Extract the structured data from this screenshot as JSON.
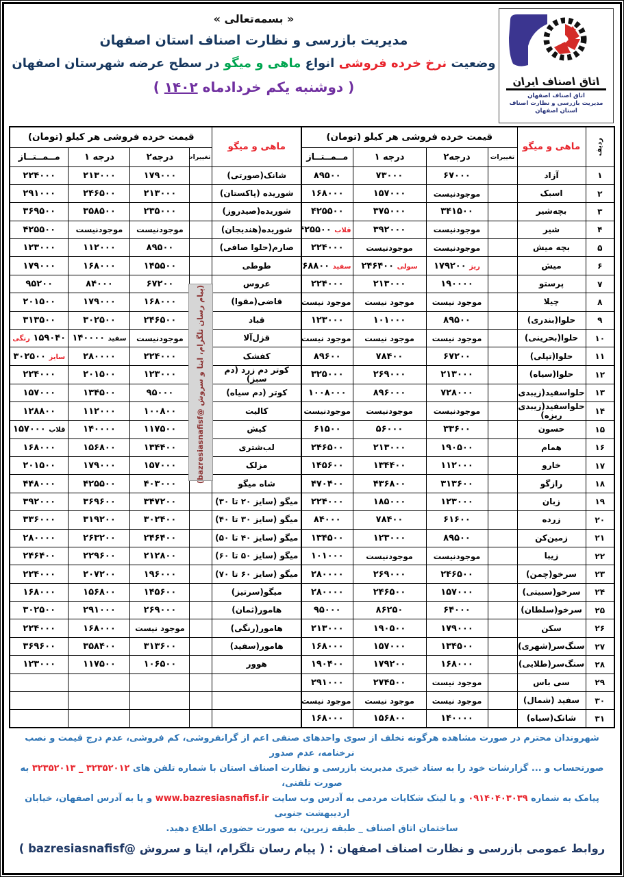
{
  "colors": {
    "navy": "#17375e",
    "red": "#e8242c",
    "green": "#00a550",
    "purple": "#7030a0",
    "footer_blue": "#2e74b5",
    "footer_navy": "#1f3864",
    "watermark_maroon": "#8b3333",
    "logo_purple": "#3b3590",
    "logo_red": "#d42b28"
  },
  "header": {
    "bismillah": "« بسمه‌تعالی »",
    "org_title": "مدیریت بازرسی و نظارت اصناف استان اصفهان",
    "subtitle_segments": [
      {
        "t": "وضعیت ",
        "c": "#17375e"
      },
      {
        "t": "نرخ خرده فروشی",
        "c": "#e8242c"
      },
      {
        "t": " انواع ",
        "c": "#17375e"
      },
      {
        "t": "ماهی و میگو",
        "c": "#00a550"
      },
      {
        "t": " در سطح عرضه شهرستان اصفهان",
        "c": "#17375e"
      }
    ],
    "date_line": {
      "prefix": "( دوشنبه  یکم خردادماه ",
      "year": "۱۴۰۲",
      "suffix": " )"
    },
    "logo": {
      "brand_name": "اتاق اصناف ایران",
      "caption_lines": [
        "اتاق اصناف اصفهان",
        "مدیریت بازرسی و نظارت اصناف",
        "استان اصفهان"
      ]
    }
  },
  "table": {
    "row_header": "ردیف",
    "fish_header": "ماهی و میگو",
    "price_header": "قیمت خرده فروشی هر کیلو (تومان)",
    "col_labels": {
      "change": "تغییرات",
      "grade2": "درجه۲",
      "grade1": "درجه ۱",
      "premium": "مــمــتــاز"
    },
    "not_available": "موجود نیست",
    "rows": [
      {
        "no": "۱",
        "right": {
          "name": "آزاد",
          "g2": "۶۷۰۰۰",
          "g1": "۷۳۰۰۰",
          "top": "۸۹۵۰۰"
        },
        "left": {
          "name": "شانک(صورتی)",
          "g2": "۱۷۹۰۰۰",
          "g1": "۲۱۳۰۰۰",
          "top": "۲۲۴۰۰۰"
        }
      },
      {
        "no": "۲",
        "right": {
          "name": "اسبک",
          "g2": "موجودنیست",
          "g1": "۱۵۷۰۰۰",
          "top": "۱۶۸۰۰۰"
        },
        "left": {
          "name": "شوریده (پاکستان)",
          "g2": "۲۱۳۰۰۰",
          "g1": "۲۴۶۵۰۰",
          "top": "۲۹۱۰۰۰"
        }
      },
      {
        "no": "۳",
        "right": {
          "name": "بچه‌شیر",
          "g2": "۳۴۱۵۰۰",
          "g1": "۳۷۵۰۰۰",
          "top": "۴۲۵۵۰۰"
        },
        "left": {
          "name": "شوریده(صیدروز)",
          "g2": "۲۳۵۰۰۰",
          "g1": "۳۵۸۵۰۰",
          "top": "۳۶۹۵۰۰"
        }
      },
      {
        "no": "۴",
        "right": {
          "name": "شیر",
          "g2": "موجودنیست",
          "g1": "۳۹۲۰۰۰",
          "top": {
            "t": "قلاب",
            "v": "۴۲۵۵۰۰",
            "tc": "#e8242c"
          }
        },
        "left": {
          "name": "شوریده(هندیجان)",
          "g2": "موجودنیست",
          "g1": "موجودنیست",
          "top": "۴۲۵۵۰۰"
        }
      },
      {
        "no": "۵",
        "right": {
          "name": "بچه میش",
          "g2": "موجودنیست",
          "g1": "موجودنیست",
          "top": "۲۲۴۰۰۰"
        },
        "left": {
          "name": "صارم(حلوا صافی)",
          "g2": "۸۹۵۰۰",
          "g1": "۱۱۲۰۰۰",
          "top": "۱۲۳۰۰۰"
        }
      },
      {
        "no": "۶",
        "right": {
          "name": "میش",
          "g2": {
            "t": "ریز",
            "v": "۱۷۹۲۰۰",
            "tc": "#e8242c"
          },
          "g1": {
            "t": "سولی",
            "v": "۲۴۶۴۰۰",
            "tc": "#e8242c"
          },
          "top": {
            "t": "سفید",
            "v": "۲۶۸۸۰۰",
            "tc": "#e8242c"
          }
        },
        "left": {
          "name": "طوطی",
          "g2": "۱۴۵۵۰۰",
          "g1": "۱۶۸۰۰۰",
          "top": "۱۷۹۰۰۰"
        }
      },
      {
        "no": "۷",
        "right": {
          "name": "پرستو",
          "g2": "۱۹۰۰۰۰",
          "g1": "۲۱۳۰۰۰",
          "top": "۲۲۴۰۰۰"
        },
        "left": {
          "name": "عروس",
          "g2": "۶۷۲۰۰",
          "g1": "۸۴۰۰۰",
          "top": "۹۵۲۰۰"
        }
      },
      {
        "no": "۸",
        "right": {
          "name": "چیلا",
          "g2": "موجود نیست",
          "g1": "موجود نیست",
          "top": "موجود نیست"
        },
        "left": {
          "name": "قاضی(مقوا)",
          "g2": "۱۶۸۰۰۰",
          "g1": "۱۷۹۰۰۰",
          "top": "۲۰۱۵۰۰"
        }
      },
      {
        "no": "۹",
        "right": {
          "name": "حلوا(بندری)",
          "g2": "۸۹۵۰۰",
          "g1": "۱۰۱۰۰۰",
          "top": "۱۲۳۰۰۰"
        },
        "left": {
          "name": "قباد",
          "g2": "۲۴۶۵۰۰",
          "g1": "۳۰۲۵۰۰",
          "top": "۳۱۳۵۰۰"
        }
      },
      {
        "no": "۱۰",
        "right": {
          "name": "حلوا(بحرینی)",
          "g2": "موجود نیست",
          "g1": "موجود نیست",
          "top": "موجود نیست"
        },
        "left": {
          "name": "قزل‌آلا",
          "g2": "موجودنیست",
          "g1": {
            "t": "سفید",
            "v": "۱۴۰۰۰۰",
            "tc": "#000000"
          },
          "top": {
            "v": "۱۵۹۰۴۰",
            "t": "رنگی",
            "tc": "#e8242c",
            "after": true
          }
        }
      },
      {
        "no": "۱۱",
        "right": {
          "name": "حلوا(تپلی)",
          "g2": "۶۷۲۰۰",
          "g1": "۷۸۴۰۰",
          "top": "۸۹۶۰۰"
        },
        "left": {
          "name": "کفشک",
          "g2": "۲۲۴۰۰۰",
          "g1": "۲۸۰۰۰۰",
          "top": {
            "t": "سایز",
            "v": "۳۰۲۵۰۰",
            "tc": "#e8242c"
          }
        }
      },
      {
        "no": "۱۲",
        "right": {
          "name": "حلوا(سیاه)",
          "g2": "۲۱۳۰۰۰",
          "g1": "۲۶۹۰۰۰",
          "top": "۳۲۵۰۰۰"
        },
        "left": {
          "name": "کوتر دم زرد (دم سبز)",
          "g2": "۱۲۳۰۰۰",
          "g1": "۲۰۱۵۰۰",
          "top": "۲۲۴۰۰۰"
        }
      },
      {
        "no": "۱۳",
        "right": {
          "name": "حلواسفید(زیبدی)",
          "g2": "۷۲۸۰۰۰",
          "g1": "۸۹۶۰۰۰",
          "top": "۱۰۰۸۰۰۰"
        },
        "left": {
          "name": "کوتر (دم سیاه)",
          "g2": "۹۵۰۰۰",
          "g1": "۱۳۴۵۰۰",
          "top": "۱۵۷۰۰۰"
        }
      },
      {
        "no": "۱۴",
        "right": {
          "name": "حلواسفید(زیبدی ریزه)",
          "g2": "موجودنیست",
          "g1": "موجودنیست",
          "top": "موجودنیست"
        },
        "left": {
          "name": "کالیت",
          "g2": "۱۰۰۸۰۰",
          "g1": "۱۱۲۰۰۰",
          "top": "۱۲۸۸۰۰"
        }
      },
      {
        "no": "۱۵",
        "right": {
          "name": "حسون",
          "g2": "۳۳۶۰۰",
          "g1": "۵۶۰۰۰",
          "top": "۶۱۵۰۰"
        },
        "left": {
          "name": "کیش",
          "g2": "۱۱۷۵۰۰",
          "g1": "۱۴۰۰۰۰",
          "top": {
            "t": "قلاب",
            "v": "۱۵۷۰۰۰",
            "tc": "#000000"
          }
        }
      },
      {
        "no": "۱۶",
        "right": {
          "name": "همام",
          "g2": "۱۹۰۵۰۰",
          "g1": "۲۱۳۰۰۰",
          "top": "۲۴۶۵۰۰"
        },
        "left": {
          "name": "لب‌شتری",
          "g2": "۱۳۴۴۰۰",
          "g1": "۱۵۶۸۰۰",
          "top": "۱۶۸۰۰۰"
        }
      },
      {
        "no": "۱۷",
        "right": {
          "name": "خارو",
          "g2": "۱۱۲۰۰۰",
          "g1": "۱۳۴۴۰۰",
          "top": "۱۴۵۶۰۰"
        },
        "left": {
          "name": "مزلک",
          "g2": "۱۵۷۰۰۰",
          "g1": "۱۷۹۰۰۰",
          "top": "۲۰۱۵۰۰"
        }
      },
      {
        "no": "۱۸",
        "right": {
          "name": "رازگو",
          "g2": "۳۱۳۶۰۰",
          "g1": "۴۳۶۸۰۰",
          "top": "۴۷۰۴۰۰"
        },
        "left": {
          "name": "شاه میگو",
          "g2": "۴۰۳۰۰۰",
          "g1": "۴۲۵۵۰۰",
          "top": "۴۴۸۰۰۰"
        }
      },
      {
        "no": "۱۹",
        "right": {
          "name": "زبان",
          "g2": "۱۲۳۰۰۰",
          "g1": "۱۸۵۰۰۰",
          "top": "۲۲۴۰۰۰"
        },
        "left": {
          "name": "میگو (سایز ۲۰ تا ۳۰)",
          "g2": "۳۴۷۲۰۰",
          "g1": "۳۶۹۶۰۰",
          "top": "۳۹۲۰۰۰"
        }
      },
      {
        "no": "۲۰",
        "right": {
          "name": "زرده",
          "g2": "۶۱۶۰۰",
          "g1": "۷۸۴۰۰",
          "top": "۸۴۰۰۰"
        },
        "left": {
          "name": "میگو (سایز ۳۰ تا ۴۰)",
          "g2": "۳۰۲۴۰۰",
          "g1": "۳۱۹۲۰۰",
          "top": "۳۳۶۰۰۰"
        }
      },
      {
        "no": "۲۱",
        "right": {
          "name": "زمین‌کن",
          "g2": "۸۹۵۰۰",
          "g1": "۱۲۳۰۰۰",
          "top": "۱۳۴۵۰۰"
        },
        "left": {
          "name": "میگو (سایز ۴۰ تا ۵۰)",
          "g2": "۲۴۶۴۰۰",
          "g1": "۲۶۳۲۰۰",
          "top": "۲۸۰۰۰۰"
        }
      },
      {
        "no": "۲۲",
        "right": {
          "name": "زیبا",
          "g2": "موجودنیست",
          "g1": "موجودنیست",
          "top": "۱۰۱۰۰۰"
        },
        "left": {
          "name": "میگو (سایز ۵۰ تا ۶۰)",
          "g2": "۲۱۲۸۰۰",
          "g1": "۲۲۹۶۰۰",
          "top": "۲۴۶۴۰۰"
        }
      },
      {
        "no": "۲۳",
        "right": {
          "name": "سرخو(چمن)",
          "g2": "۲۴۶۵۰۰",
          "g1": "۲۶۹۰۰۰",
          "top": "۲۸۰۰۰۰"
        },
        "left": {
          "name": "میگو (سایز ۶۰ تا ۷۰)",
          "g2": "۱۹۶۰۰۰",
          "g1": "۲۰۷۲۰۰",
          "top": "۲۲۴۰۰۰"
        }
      },
      {
        "no": "۲۴",
        "right": {
          "name": "سرخو(سبیتی)",
          "g2": "۱۵۷۰۰۰",
          "g1": "۲۴۶۵۰۰",
          "top": "۲۸۰۰۰۰"
        },
        "left": {
          "name": "میگو(سرتیز)",
          "g2": "۱۴۵۶۰۰",
          "g1": "۱۵۶۸۰۰",
          "top": "۱۶۸۰۰۰"
        }
      },
      {
        "no": "۲۵",
        "right": {
          "name": "سرخو(سلطان)",
          "g2": "۶۴۰۰۰",
          "g1": "۸۶۲۵۰",
          "top": "۹۵۰۰۰"
        },
        "left": {
          "name": "هامور(ثمان)",
          "g2": "۲۶۹۰۰۰",
          "g1": "۲۹۱۰۰۰",
          "top": "۳۰۲۵۰۰"
        }
      },
      {
        "no": "۲۶",
        "right": {
          "name": "سکن",
          "g2": "۱۷۹۰۰۰",
          "g1": "۱۹۰۵۰۰",
          "top": "۲۱۳۰۰۰"
        },
        "left": {
          "name": "هامور(رنگی)",
          "g2": "موجود نیست",
          "g1": "۱۶۸۰۰۰",
          "top": "۲۲۴۰۰۰"
        }
      },
      {
        "no": "۲۷",
        "right": {
          "name": "سنگ‌سر(شهری)",
          "g2": "۱۳۴۵۰۰",
          "g1": "۱۵۷۰۰۰",
          "top": "۱۶۸۰۰۰"
        },
        "left": {
          "name": "هامور(سفید)",
          "g2": "۳۱۳۶۰۰",
          "g1": "۳۵۸۴۰۰",
          "top": "۳۶۹۶۰۰"
        }
      },
      {
        "no": "۲۸",
        "right": {
          "name": "سنگ‌سر(طلایی)",
          "g2": "۱۶۸۰۰۰",
          "g1": "۱۷۹۲۰۰",
          "top": "۱۹۰۴۰۰"
        },
        "left": {
          "name": "هوور",
          "g2": "۱۰۶۵۰۰",
          "g1": "۱۱۷۵۰۰",
          "top": "۱۲۳۰۰۰"
        }
      },
      {
        "no": "۲۹",
        "right": {
          "name": "سی باس",
          "g2": "موجود نیست",
          "g1": "۲۷۴۵۰۰",
          "top": "۲۹۱۰۰۰"
        },
        "left": null
      },
      {
        "no": "۳۰",
        "right": {
          "name": "سفید (شمال)",
          "g2": "موجود نیست",
          "g1": "موجود نیست",
          "top": "موجود نیست"
        },
        "left": null
      },
      {
        "no": "۳۱",
        "right": {
          "name": "شانک(سیاه)",
          "g2": "۱۴۰۰۰۰",
          "g1": "۱۵۶۸۰۰",
          "top": "۱۶۸۰۰۰"
        },
        "left": null
      }
    ]
  },
  "watermark": "(پیام رسان تلگرام، ایتا و سروش @bazresiasnafisf)",
  "footer": {
    "lines": [
      [
        {
          "t": "شهروندان محترم در صورت مشاهده هرگونه تخلف از سوی واحدهای صنفی اعم از گرانفروشی، کم فروشی، عدم درج قیمت و نصب نرخنامه، عدم صدور"
        }
      ],
      [
        {
          "t": "صورتحساب و ... گزارشات خود را به ستاد خبری مدیریت بازرسی و نظارت اصناف استان با شماره تلفن های "
        },
        {
          "t": "۳۲۳۵۲۰۱۲ _ ۳۲۳۵۲۰۱۳",
          "c": "#e8242c"
        },
        {
          "t": " به صورت تلفنی،"
        }
      ],
      [
        {
          "t": "پیامک به شماره "
        },
        {
          "t": "۰۹۱۴۰۴۰۳۰۳۹",
          "c": "#e8242c"
        },
        {
          "t": " و یا لینک شکایات مردمی به آدرس وب سایت "
        },
        {
          "t": "www.bazresiasnafisf.ir",
          "c": "#e8242c"
        },
        {
          "t": " و یا به آدرس اصفهان، خیابان اردیبهشت جنوبی"
        }
      ],
      [
        {
          "t": "ساختمان اتاق اصناف _ طبقه زیرین، به صورت حضوری اطلاع دهید."
        }
      ]
    ],
    "pr_line": "روابط عمومی بازرسی و نظارت اصناف اصفهان : ( پیام رسان تلگرام، ایتا و سروش @bazresiasnafisf )"
  }
}
